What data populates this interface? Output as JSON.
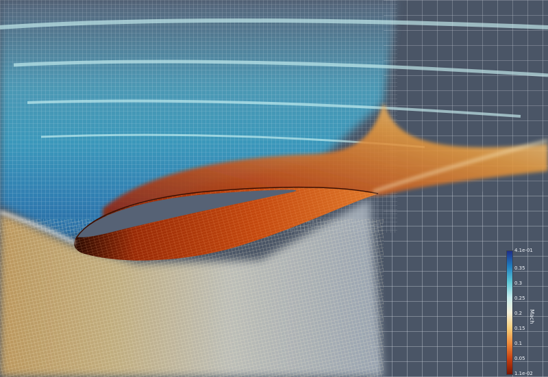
{
  "scene": {
    "description_colors": {
      "background": "#4a5566",
      "airfoil_fill": "#566275",
      "mesh_light": "#f4f7fb",
      "mesh_faint": "#cfd8e3"
    },
    "colormap": [
      "#7a1503",
      "#c64010",
      "#ef8a3a",
      "#f6cf7a",
      "#f4f1dc",
      "#c8eef0",
      "#5cc7d6",
      "#1f7fc0",
      "#1f2f8a"
    ]
  },
  "colorbar": {
    "title": "Mach",
    "ticks": [
      {
        "label": "4.1e-01",
        "frac": 1.0
      },
      {
        "label": "0.35",
        "frac": 0.853
      },
      {
        "label": "0.3",
        "frac": 0.732
      },
      {
        "label": "0.25",
        "frac": 0.61
      },
      {
        "label": "0.2",
        "frac": 0.488
      },
      {
        "label": "0.15",
        "frac": 0.366
      },
      {
        "label": "0.1",
        "frac": 0.244
      },
      {
        "label": "0.05",
        "frac": 0.122
      },
      {
        "label": "1.1e-02",
        "frac": 0.0
      }
    ]
  }
}
